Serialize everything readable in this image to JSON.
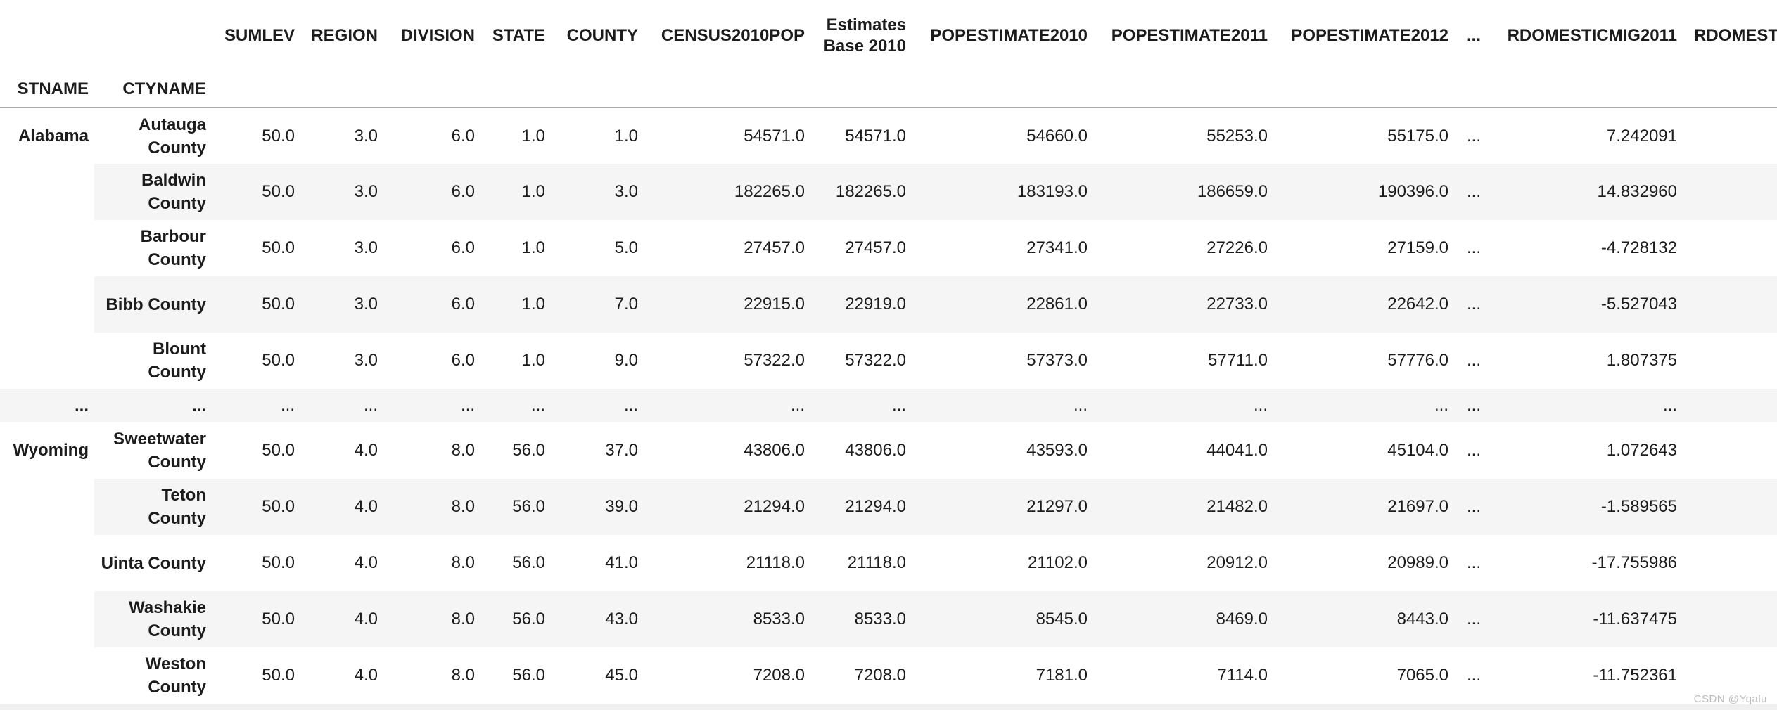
{
  "watermark": "CSDN @Yqalu",
  "colors": {
    "stripe": "#f5f5f5",
    "header_separator": "#a9a9a9",
    "text": "#1c1c1e",
    "watermark": "#bcbcbc"
  },
  "table": {
    "index_names": [
      "STNAME",
      "CTYNAME"
    ],
    "columns": [
      "SUMLEV",
      "REGION",
      "DIVISION",
      "STATE",
      "COUNTY",
      "CENSUS2010POP",
      "Estimates Base 2010",
      "POPESTIMATE2010",
      "POPESTIMATE2011",
      "POPESTIMATE2012",
      "...",
      "RDOMESTICMIG2011",
      "RDOMEST"
    ],
    "rows": [
      {
        "stname": "Alabama",
        "stname_rowspan": 5,
        "ctyname": "Autauga County",
        "values": [
          "50.0",
          "3.0",
          "6.0",
          "1.0",
          "1.0",
          "54571.0",
          "54571.0",
          "54660.0",
          "55253.0",
          "55175.0",
          "...",
          "7.242091",
          ""
        ]
      },
      {
        "ctyname": "Baldwin County",
        "values": [
          "50.0",
          "3.0",
          "6.0",
          "1.0",
          "3.0",
          "182265.0",
          "182265.0",
          "183193.0",
          "186659.0",
          "190396.0",
          "...",
          "14.832960",
          ""
        ]
      },
      {
        "ctyname": "Barbour County",
        "values": [
          "50.0",
          "3.0",
          "6.0",
          "1.0",
          "5.0",
          "27457.0",
          "27457.0",
          "27341.0",
          "27226.0",
          "27159.0",
          "...",
          "-4.728132",
          ""
        ]
      },
      {
        "ctyname": "Bibb County",
        "values": [
          "50.0",
          "3.0",
          "6.0",
          "1.0",
          "7.0",
          "22915.0",
          "22919.0",
          "22861.0",
          "22733.0",
          "22642.0",
          "...",
          "-5.527043",
          ""
        ]
      },
      {
        "ctyname": "Blount County",
        "values": [
          "50.0",
          "3.0",
          "6.0",
          "1.0",
          "9.0",
          "57322.0",
          "57322.0",
          "57373.0",
          "57711.0",
          "57776.0",
          "...",
          "1.807375",
          ""
        ]
      },
      {
        "stname": "...",
        "ctyname": "...",
        "ellipsis": true,
        "values": [
          "...",
          "...",
          "...",
          "...",
          "...",
          "...",
          "...",
          "...",
          "...",
          "...",
          "...",
          "...",
          ""
        ]
      },
      {
        "stname": "Wyoming",
        "stname_rowspan": 5,
        "ctyname": "Sweetwater County",
        "values": [
          "50.0",
          "4.0",
          "8.0",
          "56.0",
          "37.0",
          "43806.0",
          "43806.0",
          "43593.0",
          "44041.0",
          "45104.0",
          "...",
          "1.072643",
          ""
        ]
      },
      {
        "ctyname": "Teton County",
        "values": [
          "50.0",
          "4.0",
          "8.0",
          "56.0",
          "39.0",
          "21294.0",
          "21294.0",
          "21297.0",
          "21482.0",
          "21697.0",
          "...",
          "-1.589565",
          ""
        ]
      },
      {
        "ctyname": "Uinta County",
        "values": [
          "50.0",
          "4.0",
          "8.0",
          "56.0",
          "41.0",
          "21118.0",
          "21118.0",
          "21102.0",
          "20912.0",
          "20989.0",
          "...",
          "-17.755986",
          ""
        ]
      },
      {
        "ctyname": "Washakie County",
        "values": [
          "50.0",
          "4.0",
          "8.0",
          "56.0",
          "43.0",
          "8533.0",
          "8533.0",
          "8545.0",
          "8469.0",
          "8443.0",
          "...",
          "-11.637475",
          ""
        ]
      },
      {
        "ctyname": "Weston County",
        "values": [
          "50.0",
          "4.0",
          "8.0",
          "56.0",
          "45.0",
          "7208.0",
          "7208.0",
          "7181.0",
          "7114.0",
          "7065.0",
          "...",
          "-11.752361",
          ""
        ]
      }
    ]
  }
}
